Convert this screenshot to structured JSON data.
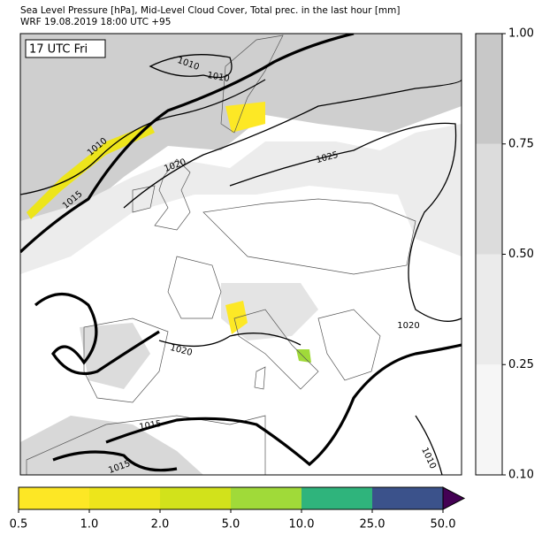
{
  "header": {
    "title": "Sea Level Pressure [hPa], Mid-Level Cloud Cover, Total prec. in the last hour [mm]",
    "subtitle": "WRF 19.08.2019 18:00 UTC +95"
  },
  "map": {
    "time_label": "17 UTC Fri",
    "contour_labels": [
      "1010",
      "1010",
      "1010",
      "1015",
      "1020",
      "1025",
      "1020",
      "1020",
      "1015",
      "1015",
      "1010"
    ]
  },
  "cloud_colorbar": {
    "ticks": [
      "0.10",
      "0.25",
      "0.50",
      "0.75",
      "1.00"
    ],
    "colors": [
      "#f6f6f6",
      "#ebebeb",
      "#dcdcdc",
      "#c8c8c8"
    ]
  },
  "precip_colorbar": {
    "ticks": [
      "0.5",
      "1.0",
      "2.0",
      "5.0",
      "10.0",
      "25.0",
      "50.0"
    ],
    "colors": [
      "#fde725",
      "#ede51b",
      "#d2e21b",
      "#a0da39",
      "#2fb47c",
      "#3b528b"
    ],
    "extend_color": "#440154"
  }
}
